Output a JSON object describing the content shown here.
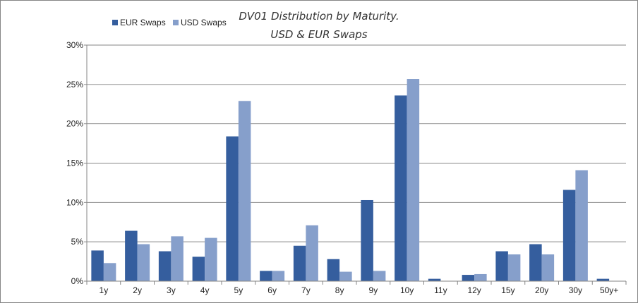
{
  "chart_data": {
    "type": "bar",
    "title_lines": [
      "DV01 Distribution by Maturity.",
      "USD & EUR Swaps"
    ],
    "xlabel": "",
    "ylabel": "",
    "categories": [
      "1y",
      "2y",
      "3y",
      "4y",
      "5y",
      "6y",
      "7y",
      "8y",
      "9y",
      "10y",
      "11y",
      "12y",
      "15y",
      "20y",
      "30y",
      "50y+"
    ],
    "series": [
      {
        "name": "EUR Swaps",
        "color": "#355E9E",
        "values": [
          3.9,
          6.4,
          3.8,
          3.1,
          18.4,
          1.3,
          4.5,
          2.8,
          10.3,
          23.6,
          0.3,
          0.8,
          3.8,
          4.7,
          11.6,
          0.3
        ]
      },
      {
        "name": "USD Swaps",
        "color": "#869FCB",
        "values": [
          2.3,
          4.7,
          5.7,
          5.5,
          22.9,
          1.3,
          7.1,
          1.2,
          1.3,
          25.7,
          0.0,
          0.9,
          3.4,
          3.4,
          14.1,
          0.0
        ]
      }
    ],
    "ylim": [
      0,
      30
    ],
    "yticks": [
      0,
      5,
      10,
      15,
      20,
      25,
      30
    ],
    "ytick_labels": [
      "0%",
      "5%",
      "10%",
      "15%",
      "20%",
      "25%",
      "30%"
    ],
    "grid": true,
    "legend_position": "top-left"
  }
}
